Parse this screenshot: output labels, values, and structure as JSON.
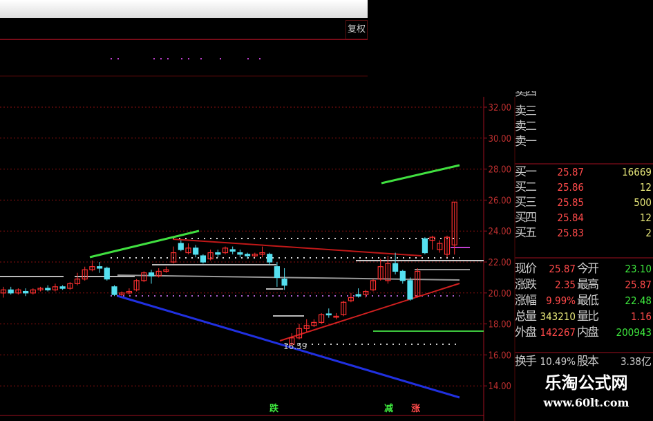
{
  "toolbar": {
    "restore_rights_label": "复权"
  },
  "axis": {
    "ticks": [
      "32.00",
      "30.00",
      "28.00",
      "26.00",
      "24.00",
      "22.00",
      "20.00",
      "18.00",
      "16.00",
      "14.00"
    ],
    "range": [
      13,
      33
    ]
  },
  "order_book": {
    "sell": [
      {
        "label": "卖三"
      },
      {
        "label": "卖二"
      },
      {
        "label": "卖一"
      }
    ],
    "sell_partial": "卖四",
    "buy": [
      {
        "label": "买一",
        "price": "25.87",
        "volume": "16669"
      },
      {
        "label": "买二",
        "price": "25.86",
        "volume": "12"
      },
      {
        "label": "买三",
        "price": "25.85",
        "volume": "500"
      },
      {
        "label": "买四",
        "price": "25.84",
        "volume": "12"
      },
      {
        "label": "买五",
        "price": "25.83",
        "volume": "2"
      }
    ]
  },
  "quote": [
    {
      "l1": "现价",
      "v1": "25.87",
      "l2": "今开",
      "v2": "23.10",
      "c1": "red",
      "c2": "grn"
    },
    {
      "l1": "涨跌",
      "v1": "2.35",
      "l2": "最高",
      "v2": "25.87",
      "c1": "red",
      "c2": "red"
    },
    {
      "l1": "涨幅",
      "v1": "9.99%",
      "l2": "最低",
      "v2": "22.48",
      "c1": "red",
      "c2": "grn"
    },
    {
      "l1": "总量",
      "v1": "343210",
      "l2": "量比",
      "v2": "1.16",
      "c1": "yel",
      "c2": "red"
    },
    {
      "l1": "外盘",
      "v1": "142267",
      "l2": "内盘",
      "v2": "200943",
      "c1": "red",
      "c2": "grn"
    }
  ],
  "quote_partial": {
    "l1": "换手",
    "v1": "10.49%",
    "l2": "股本",
    "v2": "3.38亿"
  },
  "annotations": {
    "low_price": "16.59",
    "signals": [
      {
        "text": "跌",
        "color": "#3ee83e"
      },
      {
        "text": "减",
        "color": "#3ee83e"
      },
      {
        "text": "涨",
        "color": "#ff4a4a"
      }
    ]
  },
  "watermark": {
    "title": "乐淘公式网",
    "url": "www.60lt.com"
  },
  "colors": {
    "up": "#ff3030",
    "down": "#55e0f0",
    "grid": "#8b1010"
  },
  "chart_data": {
    "type": "candlestick",
    "ylim": [
      13,
      33
    ],
    "candles": [
      [
        20.0,
        20.4,
        19.7,
        20.2
      ],
      [
        20.2,
        20.4,
        19.9,
        20.0
      ],
      [
        20.0,
        20.3,
        19.9,
        20.2
      ],
      [
        20.1,
        20.3,
        19.8,
        20.0
      ],
      [
        20.0,
        20.3,
        19.9,
        20.2
      ],
      [
        20.2,
        20.4,
        20.1,
        20.3
      ],
      [
        20.3,
        20.5,
        20.1,
        20.2
      ],
      [
        20.2,
        20.6,
        20.1,
        20.4
      ],
      [
        20.4,
        20.5,
        20.2,
        20.3
      ],
      [
        20.3,
        20.7,
        20.2,
        20.6
      ],
      [
        20.6,
        21.3,
        20.5,
        20.9
      ],
      [
        20.9,
        21.7,
        20.8,
        21.5
      ],
      [
        21.5,
        22.1,
        21.4,
        21.7
      ],
      [
        21.7,
        22.0,
        21.3,
        21.6
      ],
      [
        21.6,
        21.7,
        20.8,
        20.9
      ],
      [
        20.4,
        20.5,
        19.8,
        19.9
      ],
      [
        19.9,
        20.1,
        19.8,
        20.0
      ],
      [
        20.0,
        20.3,
        19.9,
        20.1
      ],
      [
        20.2,
        20.9,
        20.1,
        20.8
      ],
      [
        20.8,
        21.4,
        20.7,
        21.3
      ],
      [
        21.3,
        21.5,
        20.6,
        21.1
      ],
      [
        21.1,
        21.6,
        21.0,
        21.4
      ],
      [
        21.4,
        21.7,
        21.3,
        21.5
      ],
      [
        22.0,
        23.0,
        21.9,
        22.6
      ],
      [
        23.2,
        23.4,
        22.7,
        22.8
      ],
      [
        22.6,
        23.2,
        22.5,
        22.9
      ],
      [
        22.9,
        23.1,
        22.3,
        22.5
      ],
      [
        22.4,
        22.5,
        21.9,
        22.0
      ],
      [
        22.2,
        22.8,
        22.1,
        22.6
      ],
      [
        22.6,
        22.8,
        22.3,
        22.5
      ],
      [
        22.6,
        23.0,
        22.5,
        22.9
      ],
      [
        22.8,
        23.0,
        22.5,
        22.7
      ],
      [
        22.6,
        22.8,
        22.3,
        22.5
      ],
      [
        22.5,
        22.6,
        22.2,
        22.4
      ],
      [
        22.4,
        22.6,
        22.3,
        22.5
      ],
      [
        22.5,
        23.0,
        22.3,
        22.6
      ],
      [
        22.5,
        22.6,
        21.8,
        22.0
      ],
      [
        21.7,
        22.0,
        20.4,
        21.0
      ],
      [
        20.9,
        21.6,
        20.2,
        20.5
      ],
      [
        16.7,
        17.4,
        16.59,
        17.1
      ],
      [
        17.1,
        18.0,
        17.0,
        17.7
      ],
      [
        17.7,
        18.3,
        17.5,
        17.9
      ],
      [
        17.9,
        18.3,
        17.8,
        18.1
      ],
      [
        18.1,
        18.7,
        18.0,
        18.6
      ],
      [
        18.65,
        19.0,
        18.4,
        18.6
      ],
      [
        18.5,
        18.7,
        18.3,
        18.5
      ],
      [
        18.6,
        19.5,
        18.5,
        19.4
      ],
      [
        19.5,
        20.0,
        19.4,
        19.7
      ],
      [
        19.9,
        20.3,
        19.7,
        19.8
      ],
      [
        19.9,
        20.2,
        19.7,
        20.1
      ],
      [
        20.2,
        20.9,
        20.1,
        20.8
      ],
      [
        20.9,
        22.2,
        20.8,
        21.7
      ],
      [
        20.8,
        22.4,
        20.6,
        21.9
      ],
      [
        21.9,
        22.6,
        21.2,
        21.4
      ],
      [
        21.4,
        21.5,
        20.6,
        20.8
      ],
      [
        20.8,
        21.0,
        19.5,
        19.6
      ],
      [
        19.8,
        21.6,
        19.7,
        21.4
      ],
      [
        23.5,
        23.6,
        22.5,
        22.6
      ],
      [
        23.4,
        23.7,
        22.8,
        23.6
      ],
      [
        22.8,
        23.4,
        22.6,
        23.2
      ],
      [
        22.5,
        23.7,
        22.3,
        23.6
      ],
      [
        23.1,
        25.87,
        22.48,
        25.87
      ]
    ]
  }
}
